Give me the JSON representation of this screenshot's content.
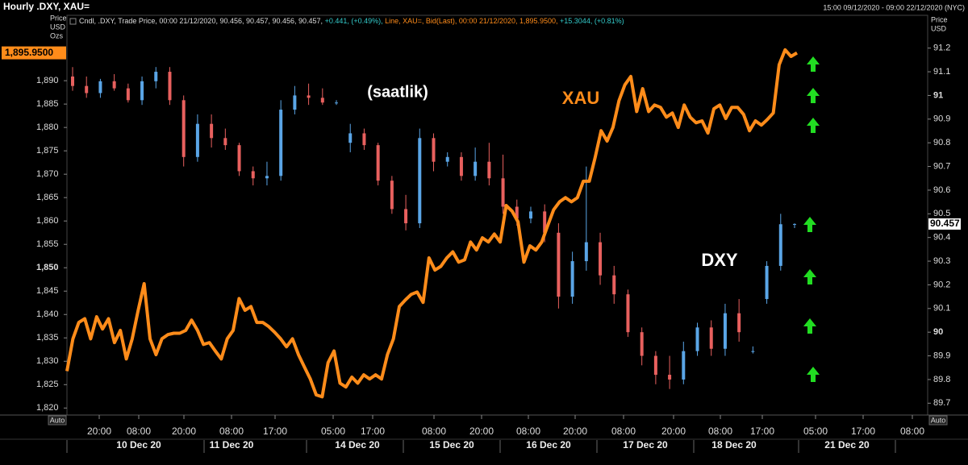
{
  "chart_data": {
    "type": "candlestick",
    "title": "Hourly .DXY, XAU=",
    "date_range": "15:00 09/12/2020 - 09:00 22/12/2020 (NYC)",
    "info": [
      {
        "text": "Cndl, .DXY, Trade Price, 00:00 21/12/2020, 90.456, 90.457, 90.456, 90.457, ",
        "color": "#dddddd"
      },
      {
        "text": "+0.441, (+0.49%), ",
        "color": "#33cccc"
      },
      {
        "text": "Line, XAU=, Bid(Last), 00:00 21/12/2020, 1,895.9500, ",
        "color": "#ff8c1a"
      },
      {
        "text": "+15.3044, (+0.81%)",
        "color": "#33cccc"
      }
    ],
    "y_label": [
      "Price",
      "USD",
      "Ozs"
    ],
    "y2_label": [
      "Price",
      "USD"
    ],
    "auto_label": "Auto",
    "annotations": [
      {
        "text": "(saatlik)",
        "color": "#ffffff"
      },
      {
        "text": "XAU",
        "color": "#ff8c1a"
      },
      {
        "text": "DXY",
        "color": "#ffffff"
      }
    ],
    "time_labels": [
      "20:00",
      "08:00",
      "20:00",
      "08:00",
      "17:00",
      "05:00",
      "17:00",
      "08:00",
      "20:00",
      "08:00",
      "20:00",
      "08:00",
      "20:00",
      "08:00",
      "17:00",
      "05:00",
      "17:00",
      "08:00"
    ],
    "date_labels": [
      "10 Dec 20",
      "11 Dec 20",
      "14 Dec 20",
      "15 Dec 20",
      "16 Dec 20",
      "17 Dec 20",
      "18 Dec 20",
      "21 Dec 20"
    ],
    "ylim": [
      1818.5,
      1899.5
    ],
    "yticks": [
      {
        "value": 1820,
        "label": "1,820"
      },
      {
        "value": 1825,
        "label": "1,825"
      },
      {
        "value": 1830,
        "label": "1,830"
      },
      {
        "value": 1835,
        "label": "1,835"
      },
      {
        "value": 1840,
        "label": "1,840"
      },
      {
        "value": 1845,
        "label": "1,845"
      },
      {
        "value": 1850,
        "label": "1,850"
      },
      {
        "value": 1855,
        "label": "1,855"
      },
      {
        "value": 1860,
        "label": "1,860"
      },
      {
        "value": 1865,
        "label": "1,865"
      },
      {
        "value": 1870,
        "label": "1,870"
      },
      {
        "value": 1875,
        "label": "1,875"
      },
      {
        "value": 1880,
        "label": "1,880"
      },
      {
        "value": 1885,
        "label": "1,885"
      },
      {
        "value": 1890,
        "label": "1,890"
      }
    ],
    "y2lim": [
      89.65,
      91.25
    ],
    "y2ticks": [
      89.7,
      89.8,
      89.9,
      90,
      90.1,
      90.2,
      90.3,
      90.4,
      90.5,
      90.6,
      90.7,
      90.8,
      90.9,
      91,
      91.1,
      91.2
    ],
    "series": [
      {
        "name": ".DXY",
        "type": "candlestick",
        "axis": "y2",
        "up_color": "#5aa5e6",
        "down_color": "#e8605e",
        "open": [
          91.08,
          91.04,
          91.01,
          91.06,
          91.03,
          90.98,
          91.06,
          91.1,
          90.98,
          90.74,
          90.88,
          90.82,
          90.79,
          90.68,
          90.65,
          90.66,
          90.94,
          91.0,
          90.99,
          90.97,
          90.8,
          90.84,
          90.79,
          90.64,
          90.52,
          90.46,
          90.82,
          90.72,
          90.74,
          90.66,
          90.72,
          90.65,
          90.53,
          90.48,
          90.51,
          90.42,
          90.15,
          90.3,
          90.38,
          90.24,
          90.16,
          90.0,
          89.9,
          89.82,
          89.8,
          89.92,
          90.02,
          89.93,
          90.08,
          89.92,
          90.14,
          90.28,
          90.456
        ],
        "high": [
          91.12,
          91.08,
          91.07,
          91.09,
          91.05,
          91.08,
          91.12,
          91.12,
          91.0,
          90.92,
          90.92,
          90.86,
          90.8,
          90.7,
          90.72,
          90.98,
          91.04,
          91.05,
          91.03,
          90.98,
          90.88,
          90.86,
          90.8,
          90.66,
          90.58,
          90.86,
          90.84,
          90.76,
          90.76,
          90.78,
          90.8,
          90.75,
          90.56,
          90.53,
          90.54,
          90.46,
          90.34,
          90.7,
          90.42,
          90.28,
          90.18,
          90.02,
          89.92,
          89.9,
          89.96,
          90.04,
          90.05,
          90.12,
          90.14,
          89.94,
          90.3,
          90.5,
          90.46
        ],
        "low": [
          91.02,
          90.99,
          90.99,
          91.02,
          90.97,
          90.96,
          91.03,
          90.96,
          90.7,
          90.72,
          90.78,
          90.77,
          90.66,
          90.62,
          90.62,
          90.64,
          90.92,
          90.96,
          90.96,
          90.96,
          90.76,
          90.77,
          90.62,
          90.5,
          90.43,
          90.44,
          90.68,
          90.7,
          90.64,
          90.64,
          90.62,
          90.5,
          90.45,
          90.46,
          90.38,
          90.1,
          90.12,
          90.26,
          90.2,
          90.12,
          89.98,
          89.86,
          89.78,
          89.76,
          89.78,
          89.9,
          89.9,
          89.9,
          89.96,
          89.91,
          90.12,
          90.26,
          90.44
        ],
        "close": [
          91.04,
          91.01,
          91.06,
          91.03,
          90.98,
          91.06,
          91.1,
          90.98,
          90.74,
          90.88,
          90.82,
          90.79,
          90.68,
          90.65,
          90.66,
          90.94,
          91.0,
          90.99,
          90.97,
          90.97,
          90.84,
          90.79,
          90.64,
          90.52,
          90.46,
          90.82,
          90.72,
          90.74,
          90.66,
          90.72,
          90.65,
          90.53,
          90.48,
          90.51,
          90.42,
          90.15,
          90.3,
          90.38,
          90.24,
          90.16,
          90.0,
          89.9,
          89.82,
          89.8,
          89.92,
          90.02,
          89.93,
          90.08,
          90.0,
          89.92,
          90.28,
          90.456,
          90.457
        ],
        "last_label": "90.457"
      },
      {
        "name": "XAU=",
        "type": "line",
        "axis": "y",
        "color": "#ff8c1a",
        "values": [
          1827.9,
          1834.8,
          1838.3,
          1839.1,
          1834.8,
          1839.5,
          1836.9,
          1839.1,
          1834.0,
          1836.6,
          1830.5,
          1834.8,
          1840.9,
          1846.6,
          1834.8,
          1831.4,
          1834.8,
          1835.7,
          1836.0,
          1836.0,
          1836.6,
          1838.8,
          1836.6,
          1833.6,
          1834.0,
          1832.2,
          1830.5,
          1834.8,
          1836.6,
          1843.4,
          1840.9,
          1841.7,
          1838.3,
          1838.3,
          1837.4,
          1836.2,
          1834.8,
          1833.1,
          1834.8,
          1831.4,
          1828.8,
          1826.2,
          1822.8,
          1822.4,
          1829.7,
          1832.2,
          1825.3,
          1824.5,
          1826.6,
          1825.3,
          1827.1,
          1826.2,
          1827.1,
          1826.2,
          1831.4,
          1834.8,
          1841.7,
          1843.1,
          1844.3,
          1844.8,
          1842.6,
          1852.1,
          1849.5,
          1850.3,
          1852.1,
          1853.4,
          1851.2,
          1851.7,
          1855.5,
          1853.8,
          1856.4,
          1855.5,
          1857.2,
          1855.5,
          1863.3,
          1862.1,
          1859.8,
          1851.2,
          1854.7,
          1853.8,
          1855.5,
          1859.0,
          1862.4,
          1864.1,
          1865.0,
          1864.1,
          1865.0,
          1868.5,
          1868.5,
          1873.6,
          1879.3,
          1877.1,
          1880.0,
          1885.7,
          1889.1,
          1890.9,
          1883.4,
          1888.3,
          1883.4,
          1884.8,
          1884.3,
          1882.2,
          1883.1,
          1880.0,
          1884.8,
          1882.2,
          1881.0,
          1881.4,
          1878.8,
          1884.0,
          1884.8,
          1881.9,
          1884.3,
          1884.3,
          1882.8,
          1879.3,
          1881.4,
          1880.5,
          1881.7,
          1883.1,
          1893.4,
          1896.6,
          1895.2,
          1895.95
        ],
        "last_label": "1,895.9500"
      }
    ]
  }
}
